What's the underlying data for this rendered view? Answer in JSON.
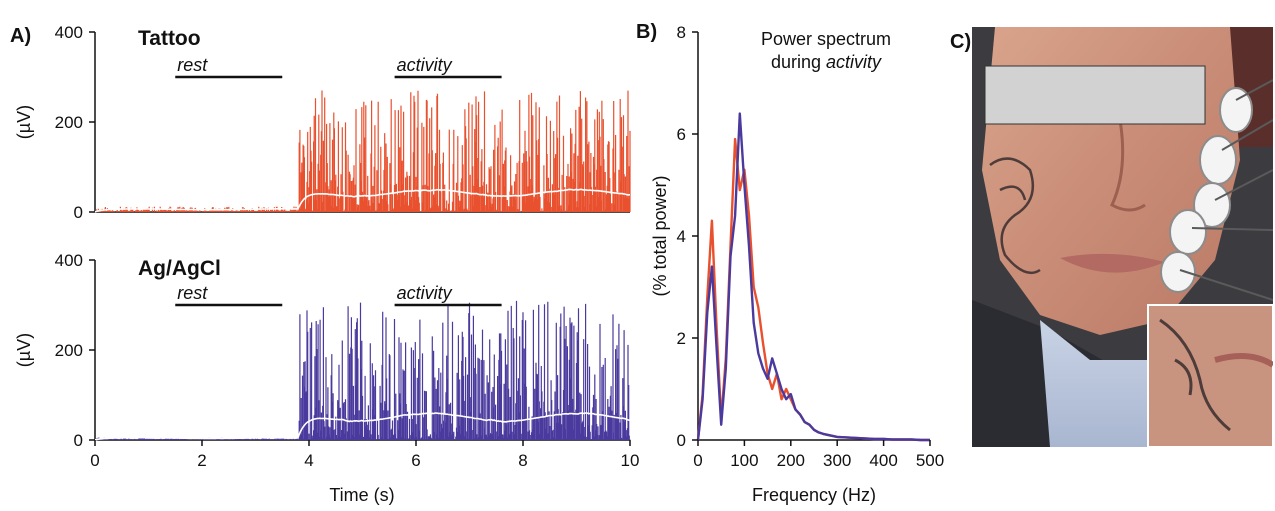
{
  "panels": {
    "a": "A)",
    "b": "B)",
    "c": "C)"
  },
  "chart_data": [
    {
      "type": "line",
      "panel": "A",
      "title": "Tattoo",
      "ylabel": "(µV)",
      "xlabel": "",
      "xlim": [
        0,
        10
      ],
      "ylim": [
        0,
        400
      ],
      "yticks": [
        0,
        200,
        400
      ],
      "xticks": [],
      "color": "#e8502e",
      "envelope_color": "#ffffff",
      "segments": [
        {
          "x_start": 0.0,
          "x_end": 3.8,
          "amplitude": 12,
          "envelope": 7
        },
        {
          "x_start": 3.8,
          "x_end": 10.0,
          "amplitude": 270,
          "envelope": 50
        }
      ],
      "annotations": [
        {
          "text": "rest",
          "x_start": 1.5,
          "x_end": 3.5,
          "y": 300
        },
        {
          "text": "activity",
          "x_start": 5.6,
          "x_end": 7.6,
          "y": 300
        }
      ]
    },
    {
      "type": "line",
      "panel": "A",
      "title": "Ag/AgCl",
      "ylabel": "(µV)",
      "xlabel": "Time (s)",
      "xlim": [
        0,
        10
      ],
      "ylim": [
        0,
        400
      ],
      "yticks": [
        0,
        200,
        400
      ],
      "xticks": [
        0,
        2,
        4,
        6,
        8,
        10
      ],
      "color": "#4b3a9e",
      "envelope_color": "#ffffff",
      "segments": [
        {
          "x_start": 0.0,
          "x_end": 3.8,
          "amplitude": 6,
          "envelope": 5
        },
        {
          "x_start": 3.8,
          "x_end": 10.0,
          "amplitude": 310,
          "envelope": 60
        }
      ],
      "annotations": [
        {
          "text": "rest",
          "x_start": 1.5,
          "x_end": 3.5,
          "y": 300
        },
        {
          "text": "activity",
          "x_start": 5.6,
          "x_end": 7.6,
          "y": 300
        }
      ]
    },
    {
      "type": "line",
      "panel": "B",
      "title": "Power spectrum",
      "title_line2_prefix": "during ",
      "title_line2_emph": "activity",
      "ylabel": "(% total power)",
      "xlabel": "Frequency (Hz)",
      "xlim": [
        0,
        500
      ],
      "ylim": [
        0,
        8
      ],
      "yticks": [
        0,
        2,
        4,
        6,
        8
      ],
      "xticks": [
        0,
        100,
        200,
        300,
        400,
        500
      ],
      "series": [
        {
          "color": "#e8502e",
          "x": [
            0,
            10,
            20,
            30,
            40,
            50,
            60,
            70,
            80,
            90,
            100,
            110,
            120,
            130,
            140,
            150,
            160,
            170,
            180,
            190,
            200,
            210,
            220,
            230,
            240,
            250,
            260,
            270,
            280,
            290,
            300,
            320,
            340,
            360,
            380,
            400,
            420,
            440,
            460,
            480,
            500
          ],
          "y": [
            0,
            0.9,
            2.8,
            4.3,
            2.2,
            0.4,
            1.6,
            3.8,
            5.9,
            4.9,
            5.3,
            4.4,
            3.0,
            2.6,
            1.9,
            1.3,
            1.0,
            1.3,
            0.8,
            1.0,
            0.8,
            0.6,
            0.5,
            0.35,
            0.3,
            0.2,
            0.15,
            0.12,
            0.1,
            0.08,
            0.06,
            0.05,
            0.04,
            0.03,
            0.02,
            0.02,
            0.01,
            0.01,
            0.01,
            0.0,
            0.0
          ]
        },
        {
          "color": "#4b3a9e",
          "x": [
            0,
            10,
            20,
            30,
            40,
            50,
            60,
            70,
            80,
            90,
            100,
            110,
            120,
            130,
            140,
            150,
            160,
            170,
            180,
            190,
            200,
            210,
            220,
            230,
            240,
            250,
            260,
            270,
            280,
            290,
            300,
            320,
            340,
            360,
            380,
            400,
            420,
            440,
            460,
            480,
            500
          ],
          "y": [
            0,
            0.8,
            2.5,
            3.4,
            1.8,
            0.3,
            1.4,
            3.6,
            4.4,
            6.4,
            5.0,
            3.8,
            2.3,
            1.7,
            1.4,
            1.2,
            1.6,
            1.3,
            1.0,
            0.8,
            0.9,
            0.6,
            0.5,
            0.35,
            0.3,
            0.2,
            0.15,
            0.12,
            0.1,
            0.08,
            0.06,
            0.05,
            0.04,
            0.03,
            0.02,
            0.02,
            0.01,
            0.01,
            0.01,
            0.0,
            0.0
          ]
        }
      ]
    }
  ],
  "photo": {
    "description": "",
    "redaction_color": "#d2d2d2",
    "inset": true
  }
}
